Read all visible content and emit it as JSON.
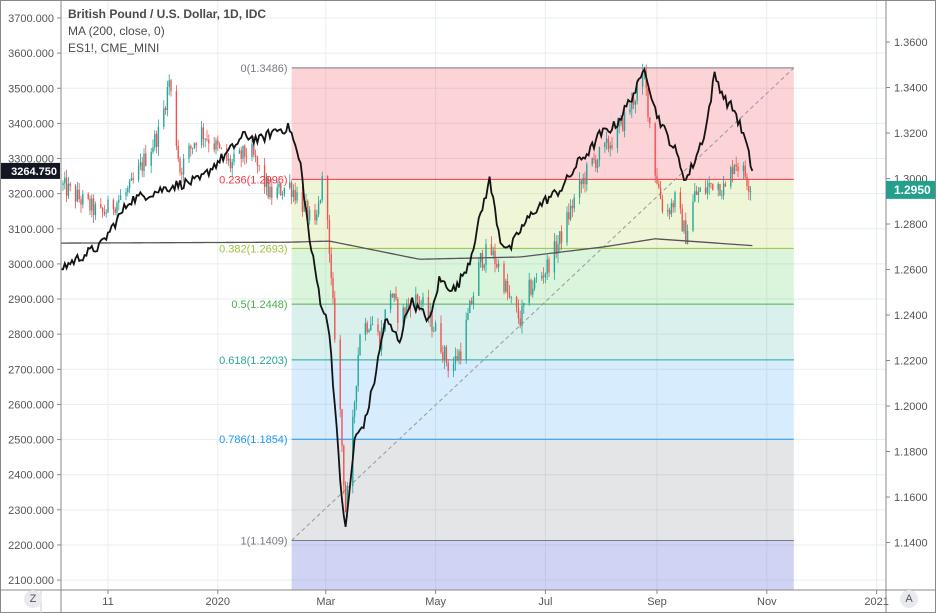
{
  "chart_data": {
    "type": "candlestick",
    "legend": {
      "title": "British Pound / U.S. Dollar, 1D, IDC",
      "ma": "MA (200, close, 0)",
      "compare": "ES1!, CME_MINI"
    },
    "x_axis": {
      "unit": "days since 2019-11-01",
      "ticks": [
        {
          "day": 0,
          "label": "11"
        },
        {
          "day": 61,
          "label": "2020"
        },
        {
          "day": 121,
          "label": "Mar"
        },
        {
          "day": 182,
          "label": "May"
        },
        {
          "day": 243,
          "label": "Jul"
        },
        {
          "day": 305,
          "label": "Sep"
        },
        {
          "day": 366,
          "label": "Nov"
        },
        {
          "day": 427,
          "label": "2021"
        }
      ]
    },
    "left_axis": {
      "series": "ES1!",
      "ylim": [
        2100,
        3700
      ],
      "ticks": [
        "3700.000",
        "3600.000",
        "3500.000",
        "3400.000",
        "3300.000",
        "3200.000",
        "3100.000",
        "3000.000",
        "2900.000",
        "2800.000",
        "2700.000",
        "2600.000",
        "2500.000",
        "2400.000",
        "2300.000",
        "2200.000",
        "2100.000"
      ],
      "last_value_label": "3264.750"
    },
    "right_axis": {
      "series": "GBPUSD",
      "ticks": [
        "1.3600",
        "1.3400",
        "1.3200",
        "1.3000",
        "1.2800",
        "1.2600",
        "1.2400",
        "1.2200",
        "1.2000",
        "1.1800",
        "1.1600",
        "1.1400"
      ],
      "last_value_label": "1.2950"
    },
    "gbpusd_close_keypoints": [
      [
        -26,
        1.2971
      ],
      [
        -4,
        1.284
      ],
      [
        12,
        1.2949
      ],
      [
        23,
        1.3125
      ],
      [
        29,
        1.3213
      ],
      [
        34,
        1.3433
      ],
      [
        40,
        1.3037
      ],
      [
        51,
        1.3213
      ],
      [
        57,
        1.3169
      ],
      [
        68,
        1.3059
      ],
      [
        79,
        1.3125
      ],
      [
        90,
        1.2927
      ],
      [
        101,
        1.2971
      ],
      [
        107,
        1.2905
      ],
      [
        115,
        1.2774
      ],
      [
        121,
        1.3081
      ],
      [
        123,
        1.2642
      ],
      [
        128,
        1.2114
      ],
      [
        132,
        1.1543
      ],
      [
        134,
        1.1675
      ],
      [
        137,
        1.2026
      ],
      [
        140,
        1.2334
      ],
      [
        146,
        1.2378
      ],
      [
        151,
        1.229
      ],
      [
        157,
        1.251
      ],
      [
        162,
        1.2378
      ],
      [
        168,
        1.2466
      ],
      [
        173,
        1.2466
      ],
      [
        182,
        1.2334
      ],
      [
        190,
        1.2158
      ],
      [
        196,
        1.2246
      ],
      [
        201,
        1.2422
      ],
      [
        207,
        1.2642
      ],
      [
        212,
        1.2686
      ],
      [
        218,
        1.2598
      ],
      [
        223,
        1.2466
      ],
      [
        229,
        1.2378
      ],
      [
        234,
        1.251
      ],
      [
        243,
        1.2598
      ],
      [
        251,
        1.273
      ],
      [
        259,
        1.2905
      ],
      [
        268,
        1.3059
      ],
      [
        276,
        1.3125
      ],
      [
        284,
        1.3213
      ],
      [
        293,
        1.3367
      ],
      [
        298,
        1.345
      ],
      [
        304,
        1.3037
      ],
      [
        309,
        1.284
      ],
      [
        315,
        1.2905
      ],
      [
        321,
        1.2752
      ],
      [
        326,
        1.2927
      ],
      [
        332,
        1.2949
      ],
      [
        337,
        1.2993
      ],
      [
        343,
        1.2949
      ],
      [
        348,
        1.3081
      ],
      [
        354,
        1.3015
      ],
      [
        358,
        1.295
      ]
    ],
    "es1_close_keypoints": [
      [
        -26,
        2988
      ],
      [
        -4,
        3053
      ],
      [
        12,
        3181
      ],
      [
        29,
        3210
      ],
      [
        37,
        3224
      ],
      [
        51,
        3238
      ],
      [
        59,
        3281
      ],
      [
        68,
        3324
      ],
      [
        76,
        3367
      ],
      [
        84,
        3352
      ],
      [
        93,
        3381
      ],
      [
        101,
        3387
      ],
      [
        107,
        3281
      ],
      [
        112,
        3068
      ],
      [
        118,
        2897
      ],
      [
        123,
        2811
      ],
      [
        129,
        2384
      ],
      [
        132,
        2241
      ],
      [
        137,
        2498
      ],
      [
        143,
        2555
      ],
      [
        148,
        2669
      ],
      [
        154,
        2840
      ],
      [
        162,
        2783
      ],
      [
        168,
        2897
      ],
      [
        173,
        2868
      ],
      [
        179,
        2840
      ],
      [
        184,
        2954
      ],
      [
        193,
        2925
      ],
      [
        201,
        3011
      ],
      [
        209,
        3181
      ],
      [
        212,
        3238
      ],
      [
        218,
        3068
      ],
      [
        223,
        3039
      ],
      [
        229,
        3096
      ],
      [
        237,
        3153
      ],
      [
        243,
        3181
      ],
      [
        251,
        3210
      ],
      [
        257,
        3253
      ],
      [
        262,
        3295
      ],
      [
        268,
        3324
      ],
      [
        273,
        3367
      ],
      [
        282,
        3395
      ],
      [
        287,
        3438
      ],
      [
        296,
        3523
      ],
      [
        298,
        3566
      ],
      [
        304,
        3438
      ],
      [
        309,
        3381
      ],
      [
        315,
        3324
      ],
      [
        321,
        3238
      ],
      [
        326,
        3295
      ],
      [
        332,
        3381
      ],
      [
        337,
        3538
      ],
      [
        343,
        3466
      ],
      [
        348,
        3438
      ],
      [
        354,
        3352
      ],
      [
        358,
        3264.75
      ]
    ],
    "ma200_keypoints": [
      [
        -26,
        1.2716
      ],
      [
        101,
        1.272
      ],
      [
        123,
        1.2725
      ],
      [
        173,
        1.2645
      ],
      [
        229,
        1.2655
      ],
      [
        276,
        1.27
      ],
      [
        304,
        1.2735
      ],
      [
        358,
        1.2705
      ]
    ],
    "fibonacci": {
      "start_day": 102,
      "end_day": 381,
      "levels": [
        {
          "ratio": "0",
          "price": 1.3486,
          "label": "0(1.3486)",
          "color": "#787b86",
          "fill": "rgba(242,54,69,0.22)"
        },
        {
          "ratio": "0.236",
          "price": 1.2996,
          "label": "0.236(1.2996)",
          "color": "#f23645",
          "fill": "rgba(176,212,58,0.2)"
        },
        {
          "ratio": "0.382",
          "price": 1.2693,
          "label": "0.382(1.2693)",
          "color": "#9bc43a",
          "fill": "rgba(76,200,80,0.2)"
        },
        {
          "ratio": "0.5",
          "price": 1.2448,
          "label": "0.5(1.2448)",
          "color": "#4caf50",
          "fill": "rgba(8,153,129,0.15)"
        },
        {
          "ratio": "0.618",
          "price": 1.2203,
          "label": "0.618(1.2203)",
          "color": "#26a69a",
          "fill": "rgba(33,150,243,0.18)"
        },
        {
          "ratio": "0.786",
          "price": 1.1854,
          "label": "0.786(1.1854)",
          "color": "#2196f3",
          "fill": "rgba(120,123,134,0.2)"
        },
        {
          "ratio": "1",
          "price": 1.1409,
          "label": "1(1.1409)",
          "color": "#787b86",
          "fill": "rgba(103,110,220,0.3)"
        }
      ]
    },
    "colors": {
      "up": "#26a69a",
      "down": "#ef5350",
      "es_line": "#131313",
      "ma_line": "#555555",
      "last_price_bg": "#22a08c",
      "es_label_bg": "#131722"
    }
  },
  "controls": {
    "zoom_button": "Z",
    "auto_button": "A"
  }
}
